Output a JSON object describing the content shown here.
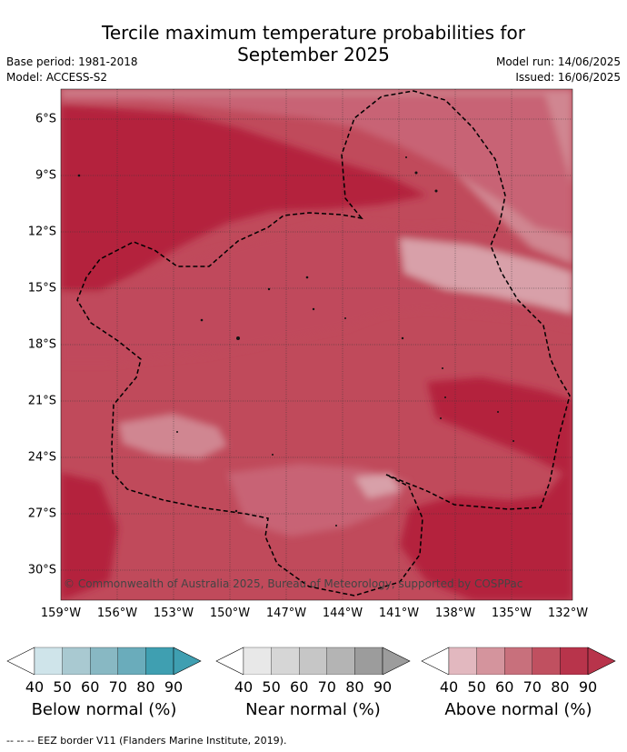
{
  "title": {
    "line1": "Tercile maximum temperature probabilities for",
    "line2": "September 2025"
  },
  "meta": {
    "base_period": "Base period: 1981-2018",
    "model": "Model: ACCESS-S2",
    "model_run": "Model run: 14/06/2025",
    "issued": "Issued: 16/06/2025"
  },
  "map": {
    "lon_labels": [
      "159°W",
      "156°W",
      "153°W",
      "150°W",
      "147°W",
      "144°W",
      "141°W",
      "138°W",
      "135°W",
      "132°W"
    ],
    "lat_labels": [
      "6°S",
      "9°S",
      "12°S",
      "15°S",
      "18°S",
      "21°S",
      "24°S",
      "27°S",
      "30°S"
    ],
    "copyright": "© Commonwealth of Australia 2025, Bureau of Meteorology, supported by COSPPac"
  },
  "legends": [
    {
      "label": "Below normal (%)",
      "ticks": [
        "40",
        "50",
        "60",
        "70",
        "80",
        "90"
      ],
      "colors": [
        "#cfe4ea",
        "#a9c9d1",
        "#88b8c3",
        "#6aacbb",
        "#3f9fb1"
      ]
    },
    {
      "label": "Near normal (%)",
      "ticks": [
        "40",
        "50",
        "60",
        "70",
        "80",
        "90"
      ],
      "colors": [
        "#e8e8e8",
        "#d6d6d6",
        "#c6c6c6",
        "#b4b4b4",
        "#9c9c9c"
      ]
    },
    {
      "label": "Above normal (%)",
      "ticks": [
        "40",
        "50",
        "60",
        "70",
        "80",
        "90"
      ],
      "colors": [
        "#e2b8bf",
        "#d4949d",
        "#c8707c",
        "#c05060",
        "#b8344b"
      ]
    }
  ],
  "footnote": "--  --  -- EEZ border V11 (Flanders Marine Institute, 2019)."
}
